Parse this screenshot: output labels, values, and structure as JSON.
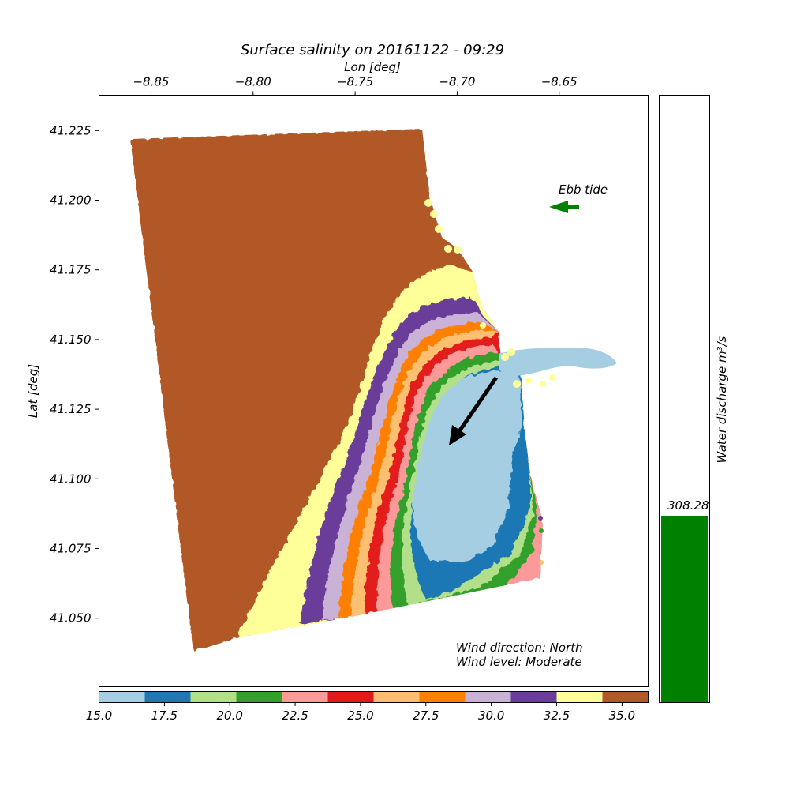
{
  "chart_data": {
    "type": "heatmap",
    "title": "Surface salinity on 20161122 - 09:29",
    "xlabel": "Lon [deg]",
    "ylabel": "Lat [deg]",
    "x_ticks": [
      -8.85,
      -8.8,
      -8.75,
      -8.7,
      -8.65
    ],
    "x_tick_labels": [
      "−8.85",
      "−8.80",
      "−8.75",
      "−8.70",
      "−8.65"
    ],
    "y_ticks": [
      41.225,
      41.2,
      41.175,
      41.15,
      41.125,
      41.1,
      41.075,
      41.05
    ],
    "y_tick_labels": [
      "41.225",
      "41.200",
      "41.175",
      "41.150",
      "41.125",
      "41.100",
      "41.075",
      "41.050"
    ],
    "xlim": [
      -8.8755,
      -8.6064
    ],
    "ylim": [
      41.0254,
      41.2377
    ],
    "colorbar": {
      "range": [
        15.0,
        36.0
      ],
      "ticks": [
        15.0,
        17.5,
        20.0,
        22.5,
        25.0,
        27.5,
        30.0,
        32.5,
        35.0
      ],
      "tick_labels": [
        "15.0",
        "17.5",
        "20.0",
        "22.5",
        "25.0",
        "27.5",
        "30.0",
        "32.5",
        "35.0"
      ],
      "colors": [
        "#a6cee3",
        "#1f78b4",
        "#b2df8a",
        "#33a02c",
        "#fb9a99",
        "#e31a1c",
        "#fdbf6f",
        "#ff7f00",
        "#cab2d6",
        "#6a3d9a",
        "#ffff99",
        "#b15928"
      ]
    },
    "salinity_bands": [
      {
        "range": [
          15.0,
          16.75
        ],
        "color": "#a6cee3"
      },
      {
        "range": [
          16.75,
          18.5
        ],
        "color": "#1f78b4"
      },
      {
        "range": [
          18.5,
          20.25
        ],
        "color": "#b2df8a"
      },
      {
        "range": [
          20.25,
          22.0
        ],
        "color": "#33a02c"
      },
      {
        "range": [
          22.0,
          23.75
        ],
        "color": "#fb9a99"
      },
      {
        "range": [
          23.75,
          25.5
        ],
        "color": "#e31a1c"
      },
      {
        "range": [
          25.5,
          27.25
        ],
        "color": "#fdbf6f"
      },
      {
        "range": [
          27.25,
          29.0
        ],
        "color": "#ff7f00"
      },
      {
        "range": [
          29.0,
          30.75
        ],
        "color": "#cab2d6"
      },
      {
        "range": [
          30.75,
          32.5
        ],
        "color": "#6a3d9a"
      },
      {
        "range": [
          32.5,
          34.25
        ],
        "color": "#ffff99"
      },
      {
        "range": [
          34.25,
          36.0
        ],
        "color": "#b15928"
      }
    ],
    "annotations": {
      "tide": "Ebb tide",
      "tide_arrow_color": "#008000",
      "wind_direction": "Wind direction: North",
      "wind_level": "Wind level: Moderate"
    },
    "discharge": {
      "label": "Water discharge m³/s",
      "value": 308.28,
      "value_label": "308.28",
      "bar_color": "#008000"
    }
  }
}
